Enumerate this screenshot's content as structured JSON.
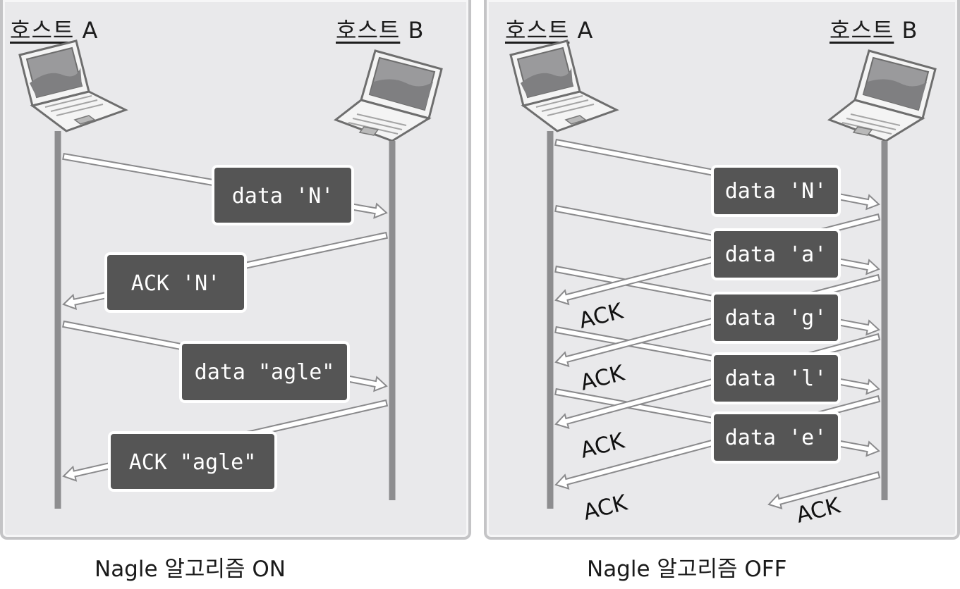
{
  "panels": [
    {
      "host_a_ko": "호스트",
      "host_a_letter": "A",
      "host_b_ko": "호스트",
      "host_b_letter": "B",
      "caption": "Nagle 알고리즘 ON",
      "messages": [
        {
          "label": "data 'N'",
          "direction": "A-to-B"
        },
        {
          "label": "ACK 'N'",
          "direction": "B-to-A"
        },
        {
          "label": "data \"agle\"",
          "direction": "A-to-B"
        },
        {
          "label": "ACK \"agle\"",
          "direction": "B-to-A"
        }
      ]
    },
    {
      "host_a_ko": "호스트",
      "host_a_letter": "A",
      "host_b_ko": "호스트",
      "host_b_letter": "B",
      "caption": "Nagle 알고리즘 OFF",
      "messages": [
        {
          "label": "data 'N'",
          "direction": "A-to-B"
        },
        {
          "label": "data 'a'",
          "direction": "A-to-B"
        },
        {
          "label": "data 'g'",
          "direction": "A-to-B"
        },
        {
          "label": "data 'l'",
          "direction": "A-to-B"
        },
        {
          "label": "data 'e'",
          "direction": "A-to-B"
        }
      ],
      "acks": [
        "ACK",
        "ACK",
        "ACK",
        "ACK",
        "ACK"
      ]
    }
  ],
  "colors": {
    "panel_bg": "#e9e9eb",
    "label_box": "#555555",
    "timeline": "#8d8d8f"
  }
}
